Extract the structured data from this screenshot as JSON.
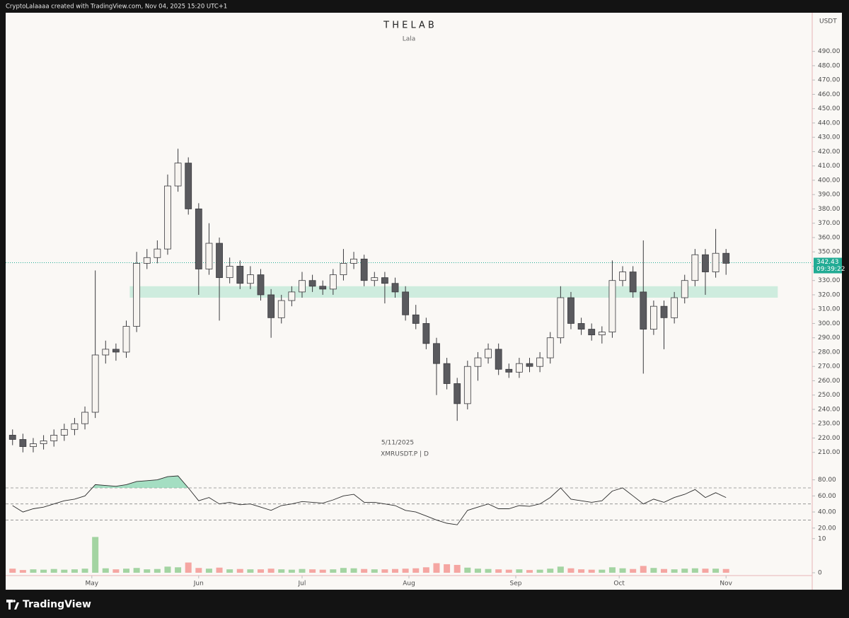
{
  "chart_data": {
    "type": "candlestick",
    "header": "CryptoLalaaaa created with TradingView.com, Nov 04, 2025 15:20 UTC+1",
    "title": "T H E   L A B",
    "subtitle": "Lala",
    "watermark_date": "5/11/2025",
    "watermark_symbol": "XMRUSDT.P | D",
    "currency": "USDT",
    "brand": "TradingView",
    "x": [
      2,
      5,
      8,
      11,
      14,
      17,
      20,
      23,
      26,
      29,
      32,
      35,
      38,
      41,
      44,
      47,
      50,
      53,
      56,
      59,
      62,
      65,
      68,
      71,
      74,
      77,
      80,
      83,
      86,
      89,
      92,
      95,
      98,
      101,
      104,
      107,
      110,
      113,
      116,
      119,
      122,
      125,
      128,
      131,
      134,
      137,
      140,
      143,
      146,
      149,
      152,
      155,
      158,
      161,
      164,
      167,
      170,
      173,
      176,
      179,
      182,
      185,
      188,
      191,
      194,
      197,
      200,
      203,
      206,
      209
    ],
    "xlim": [
      0,
      234
    ],
    "xticks": [
      {
        "value": 25,
        "label": "May"
      },
      {
        "value": 56,
        "label": "Jun"
      },
      {
        "value": 86,
        "label": "Jul"
      },
      {
        "value": 117,
        "label": "Aug"
      },
      {
        "value": 148,
        "label": "Sep"
      },
      {
        "value": 178,
        "label": "Oct"
      },
      {
        "value": 209,
        "label": "Nov"
      }
    ],
    "open": [
      222,
      219,
      214,
      216,
      218,
      222,
      226,
      230,
      238,
      278,
      282,
      280,
      298,
      342,
      346,
      352,
      396,
      412,
      380,
      338,
      356,
      332,
      340,
      328,
      334,
      320,
      304,
      316,
      322,
      330,
      326,
      324,
      334,
      342,
      345,
      330,
      332,
      328,
      322,
      306,
      300,
      286,
      272,
      258,
      244,
      270,
      276,
      282,
      268,
      266,
      272,
      270,
      276,
      290,
      318,
      300,
      296,
      292,
      294,
      330,
      336,
      322,
      296,
      312,
      304,
      318,
      330,
      348,
      336,
      349
    ],
    "high": [
      226,
      223,
      220,
      222,
      226,
      230,
      234,
      242,
      337,
      288,
      286,
      302,
      350,
      352,
      358,
      404,
      422,
      416,
      384,
      370,
      360,
      346,
      344,
      340,
      338,
      324,
      320,
      326,
      336,
      334,
      330,
      338,
      352,
      350,
      348,
      336,
      336,
      332,
      326,
      313,
      304,
      290,
      276,
      262,
      274,
      280,
      286,
      286,
      272,
      276,
      276,
      280,
      294,
      326,
      322,
      304,
      300,
      298,
      344,
      340,
      340,
      358,
      316,
      316,
      322,
      334,
      352,
      352,
      366,
      352
    ],
    "low": [
      215,
      210,
      210,
      212,
      214,
      218,
      222,
      226,
      234,
      272,
      274,
      276,
      294,
      338,
      342,
      348,
      392,
      376,
      320,
      334,
      302,
      328,
      324,
      324,
      316,
      290,
      300,
      312,
      318,
      322,
      320,
      320,
      330,
      338,
      326,
      326,
      314,
      318,
      302,
      296,
      282,
      250,
      254,
      232,
      240,
      260,
      272,
      264,
      262,
      262,
      266,
      266,
      272,
      286,
      296,
      292,
      288,
      286,
      290,
      326,
      318,
      265,
      292,
      282,
      300,
      314,
      326,
      320,
      332,
      334
    ],
    "close": [
      219,
      214,
      216,
      218,
      222,
      226,
      230,
      238,
      278,
      282,
      280,
      298,
      342,
      346,
      352,
      396,
      412,
      380,
      338,
      356,
      332,
      340,
      328,
      334,
      320,
      304,
      316,
      322,
      330,
      326,
      324,
      334,
      342,
      345,
      330,
      332,
      328,
      322,
      306,
      300,
      286,
      272,
      258,
      244,
      270,
      276,
      282,
      268,
      266,
      272,
      270,
      276,
      290,
      318,
      300,
      296,
      292,
      294,
      330,
      336,
      322,
      296,
      312,
      304,
      318,
      330,
      348,
      336,
      349,
      342
    ],
    "up_color": "#f7f4f0",
    "down_color": "#5a5a5e",
    "wick_color": "#3a3a3e",
    "ylim": [
      199,
      516
    ],
    "yticks": [
      {
        "value": 210,
        "label": "210.00"
      },
      {
        "value": 220,
        "label": "220.00"
      },
      {
        "value": 230,
        "label": "230.00"
      },
      {
        "value": 240,
        "label": "240.00"
      },
      {
        "value": 250,
        "label": "250.00"
      },
      {
        "value": 260,
        "label": "260.00"
      },
      {
        "value": 270,
        "label": "270.00"
      },
      {
        "value": 280,
        "label": "280.00"
      },
      {
        "value": 290,
        "label": "290.00"
      },
      {
        "value": 300,
        "label": "300.00"
      },
      {
        "value": 310,
        "label": "310.00"
      },
      {
        "value": 320,
        "label": "320.00"
      },
      {
        "value": 330,
        "label": "330.00"
      },
      {
        "value": 340,
        "label": "340.00"
      },
      {
        "value": 350,
        "label": "350.00"
      },
      {
        "value": 360,
        "label": "360.00"
      },
      {
        "value": 370,
        "label": "370.00"
      },
      {
        "value": 380,
        "label": "380.00"
      },
      {
        "value": 390,
        "label": "390.00"
      },
      {
        "value": 400,
        "label": "400.00"
      },
      {
        "value": 410,
        "label": "410.00"
      },
      {
        "value": 420,
        "label": "420.00"
      },
      {
        "value": 430,
        "label": "430.00"
      },
      {
        "value": 440,
        "label": "440.00"
      },
      {
        "value": 450,
        "label": "450.00"
      },
      {
        "value": 460,
        "label": "460.00"
      },
      {
        "value": 470,
        "label": "470.00"
      },
      {
        "value": 480,
        "label": "480.00"
      },
      {
        "value": 490,
        "label": "490.00"
      }
    ],
    "last_price": 342.43,
    "countdown": "09:39:22",
    "last_price_color": "#22ab94",
    "zone": {
      "low": 318,
      "high": 326,
      "x": [
        36,
        224
      ],
      "color": "#bfe8d6"
    },
    "rsi": {
      "values": [
        48,
        40,
        44,
        46,
        50,
        54,
        56,
        60,
        74,
        73,
        72,
        74,
        78,
        79,
        80,
        84,
        85,
        70,
        54,
        58,
        50,
        52,
        49,
        50,
        46,
        42,
        48,
        50,
        53,
        52,
        51,
        55,
        60,
        62,
        52,
        52,
        50,
        48,
        42,
        40,
        35,
        30,
        26,
        24,
        42,
        46,
        50,
        44,
        44,
        48,
        47,
        50,
        58,
        70,
        56,
        54,
        52,
        54,
        66,
        70,
        60,
        50,
        56,
        52,
        58,
        62,
        68,
        58,
        64,
        58
      ],
      "ylim": [
        11,
        92
      ],
      "yticks": [
        {
          "value": 20,
          "label": "20.00"
        },
        {
          "value": 40,
          "label": "40.00"
        },
        {
          "value": 60,
          "label": "60.00"
        },
        {
          "value": 80,
          "label": "80.00"
        }
      ],
      "levels": [
        70,
        50,
        30
      ],
      "color": "#2b2b2b",
      "fill": "#7fd3ad"
    },
    "volume": {
      "values": [
        1.2,
        0.8,
        1,
        0.9,
        1.1,
        0.9,
        1,
        1.2,
        10.5,
        1.3,
        1,
        1.2,
        1.4,
        1,
        1.1,
        1.8,
        1.6,
        3,
        1.4,
        1.2,
        1.5,
        1,
        1.1,
        1,
        1,
        1.2,
        1,
        0.9,
        1.1,
        1,
        0.9,
        1,
        1.4,
        1.3,
        1.1,
        1,
        1,
        1.1,
        1.2,
        1.3,
        1.6,
        2.8,
        2.5,
        2.3,
        1.5,
        1.2,
        1.1,
        1,
        0.9,
        1,
        0.8,
        0.9,
        1.2,
        1.8,
        1.3,
        1,
        0.9,
        0.9,
        1.6,
        1.3,
        1.1,
        2,
        1.4,
        1.1,
        1,
        1.2,
        1.3,
        1.2,
        1.2,
        1.1
      ],
      "ylim": [
        0,
        11
      ],
      "yticks": [
        0,
        10
      ],
      "up_color": "#4caf50",
      "down_color": "#ef5350"
    }
  }
}
